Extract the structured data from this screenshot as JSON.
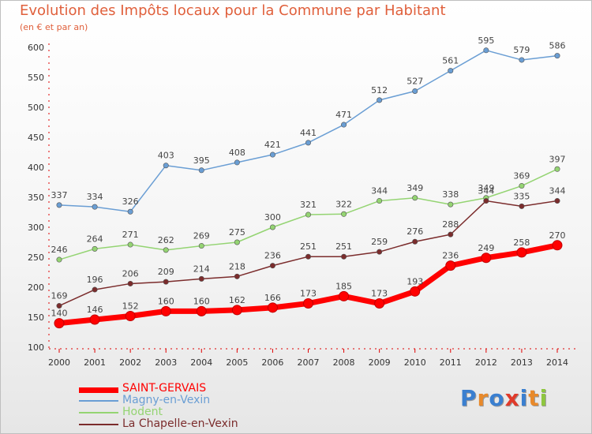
{
  "header": {
    "title": "Evolution des Impôts locaux pour la Commune par Habitant",
    "subtitle": "(en € et par an)"
  },
  "logo": {
    "text": "Proxiti",
    "colors": [
      "#3a7fd0",
      "#e8892a",
      "#3a7fd0",
      "#e03a2a",
      "#3a7fd0",
      "#e8892a",
      "#8ec63f"
    ]
  },
  "chart_data": {
    "type": "line",
    "x": [
      2000,
      2001,
      2002,
      2003,
      2004,
      2005,
      2006,
      2007,
      2008,
      2009,
      2010,
      2011,
      2012,
      2013,
      2014
    ],
    "ylim": [
      100,
      600
    ],
    "yticks": [
      100,
      150,
      200,
      250,
      300,
      350,
      400,
      450,
      500,
      550,
      600
    ],
    "grid": false,
    "legend_position": "bottom-left",
    "series": [
      {
        "name": "SAINT-GERVAIS",
        "color": "#ff0000",
        "values": [
          140,
          146,
          152,
          160,
          160,
          162,
          166,
          173,
          185,
          173,
          193,
          236,
          249,
          258,
          270
        ]
      },
      {
        "name": "Magny-en-Vexin",
        "color": "#6a9ed4",
        "values": [
          337,
          334,
          326,
          403,
          395,
          408,
          421,
          441,
          471,
          512,
          527,
          561,
          595,
          579,
          586
        ]
      },
      {
        "name": "Hodent",
        "color": "#94d472",
        "values": [
          246,
          264,
          271,
          262,
          269,
          275,
          300,
          321,
          322,
          344,
          349,
          338,
          349,
          369,
          397
        ]
      },
      {
        "name": "La Chapelle-en-Vexin",
        "color": "#7b2c2c",
        "values": [
          169,
          196,
          206,
          209,
          214,
          218,
          236,
          251,
          251,
          259,
          276,
          288,
          344,
          335,
          344
        ]
      }
    ]
  }
}
